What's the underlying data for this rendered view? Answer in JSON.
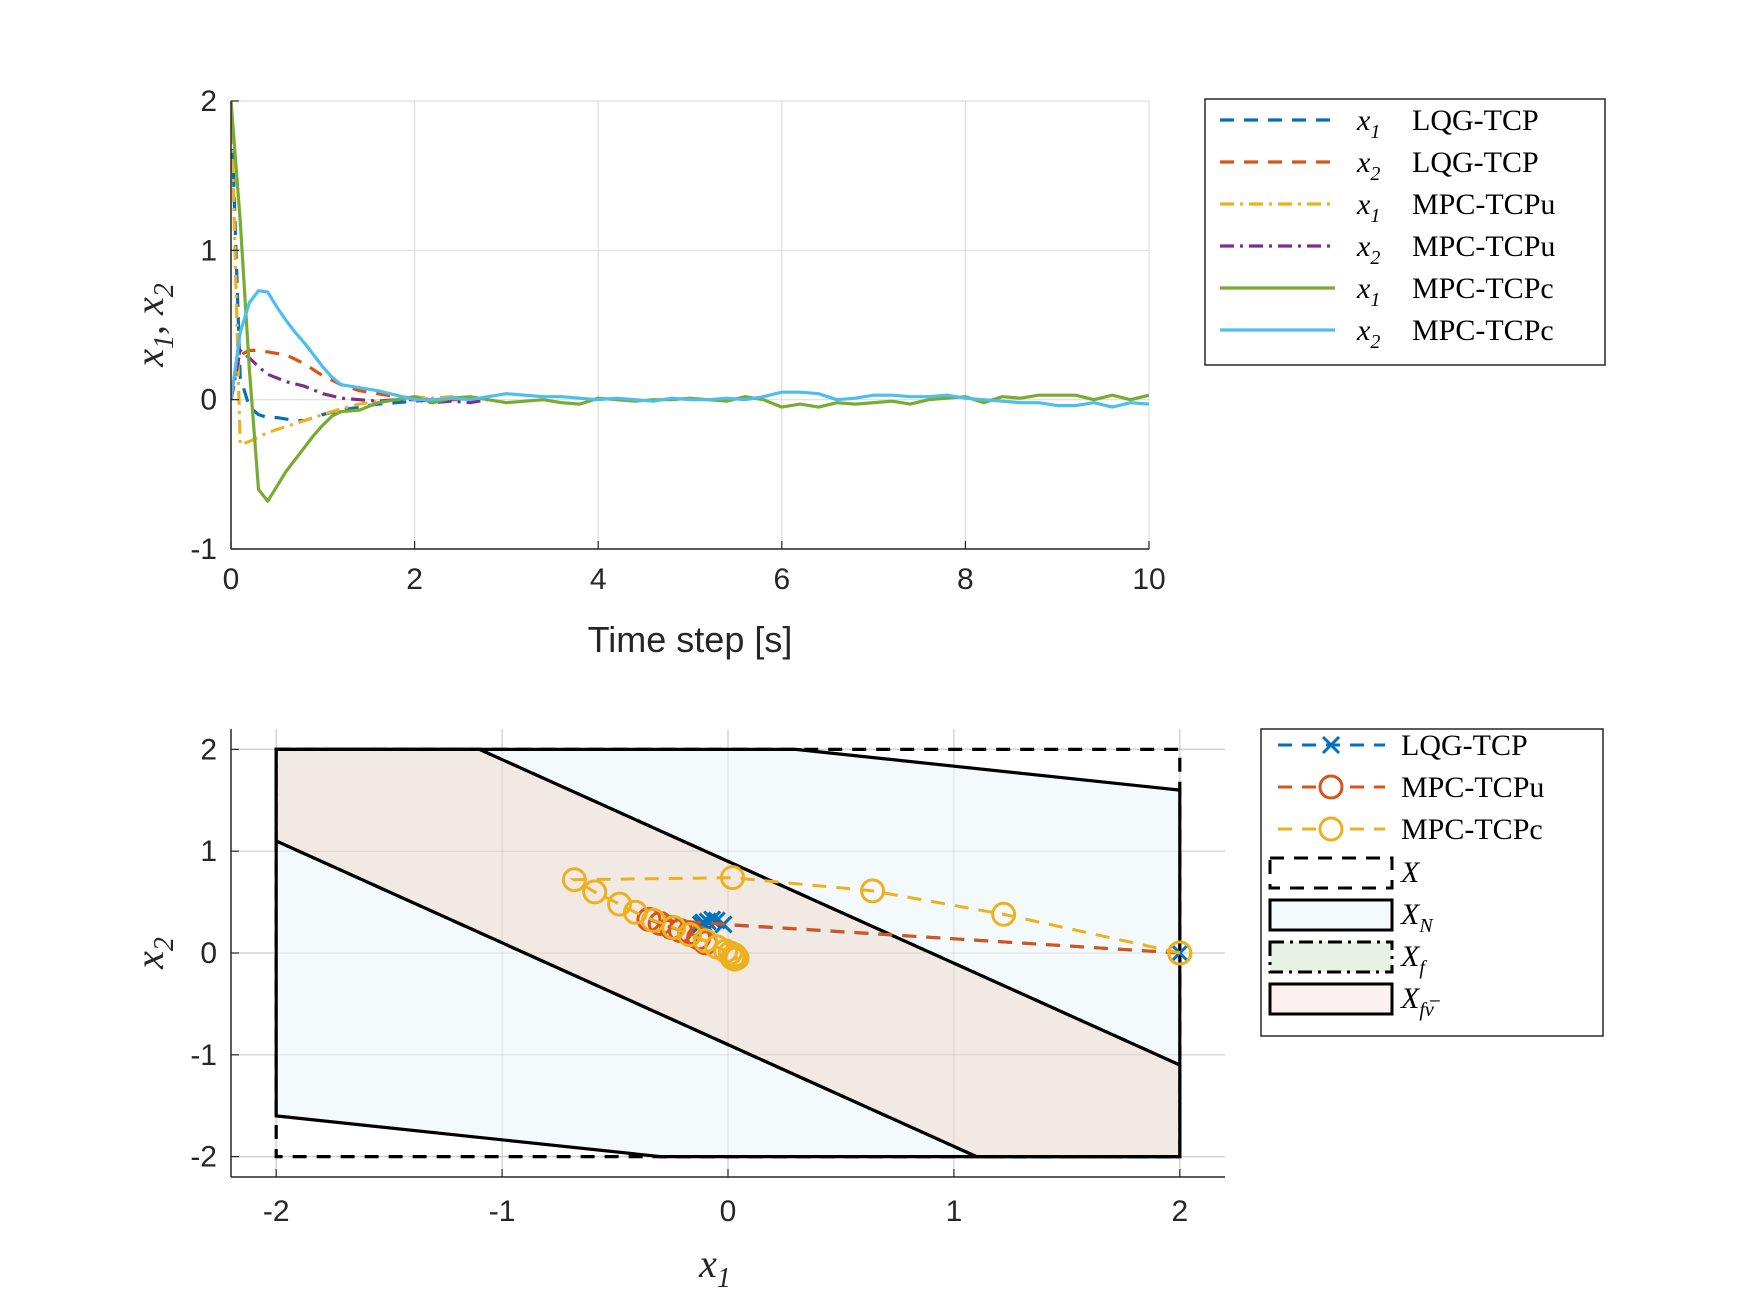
{
  "chart_data": [
    {
      "type": "line",
      "xlabel": "Time step [s]",
      "ylabel": "x1, x2",
      "xlim": [
        0,
        10
      ],
      "ylim": [
        -1,
        2
      ],
      "xticks": [
        "0",
        "2",
        "4",
        "6",
        "8",
        "10"
      ],
      "yticks": [
        "-1",
        "0",
        "1",
        "2"
      ],
      "grid": true,
      "legend_position": "outside-right",
      "series": [
        {
          "name": "x1 LQG-TCP",
          "sym": "x",
          "sub": "1",
          "method": "LQG-TCP",
          "color": "#0072BD",
          "dash": "dashed",
          "x": [
            0,
            0.1,
            0.2,
            0.3,
            0.4,
            0.5,
            0.6,
            0.7,
            0.8,
            0.9,
            1.0,
            1.2,
            1.4,
            1.6,
            1.8,
            2.0,
            2.2,
            2.4,
            2.5
          ],
          "y": [
            2.0,
            0.15,
            -0.05,
            -0.1,
            -0.12,
            -0.12,
            -0.13,
            -0.14,
            -0.14,
            -0.12,
            -0.1,
            -0.07,
            -0.05,
            -0.03,
            -0.02,
            -0.01,
            0.0,
            0.0,
            0.0
          ]
        },
        {
          "name": "x2 LQG-TCP",
          "sym": "x",
          "sub": "2",
          "method": "LQG-TCP",
          "color": "#D95319",
          "dash": "dashed",
          "x": [
            0,
            0.1,
            0.2,
            0.3,
            0.4,
            0.5,
            0.6,
            0.7,
            0.8,
            0.9,
            1.0,
            1.2,
            1.4,
            1.6,
            1.8,
            2.0,
            2.2,
            2.4,
            2.5
          ],
          "y": [
            0.0,
            0.3,
            0.33,
            0.33,
            0.32,
            0.31,
            0.3,
            0.27,
            0.24,
            0.2,
            0.16,
            0.1,
            0.06,
            0.04,
            0.02,
            0.01,
            0.0,
            0.0,
            0.0
          ]
        },
        {
          "name": "x1 MPC-TCPu",
          "sym": "x",
          "sub": "1",
          "method": "MPC-TCPu",
          "color": "#EDB120",
          "dash": "dashdot",
          "x": [
            0,
            0.1,
            0.2,
            0.3,
            0.4,
            0.6,
            0.8,
            1.0,
            1.2,
            1.4,
            1.6,
            1.8,
            2.0,
            2.2,
            2.4,
            2.6,
            2.8
          ],
          "y": [
            2.0,
            -0.3,
            -0.28,
            -0.25,
            -0.22,
            -0.18,
            -0.14,
            -0.1,
            -0.06,
            -0.03,
            -0.01,
            0.0,
            0.02,
            0.01,
            0.02,
            0.0,
            0.01
          ]
        },
        {
          "name": "x2 MPC-TCPu",
          "sym": "x",
          "sub": "2",
          "method": "MPC-TCPu",
          "color": "#7E2F8E",
          "dash": "dashdot",
          "x": [
            0,
            0.1,
            0.2,
            0.3,
            0.4,
            0.6,
            0.8,
            1.0,
            1.2,
            1.4,
            1.6,
            1.8,
            2.0,
            2.2,
            2.4,
            2.6,
            2.8
          ],
          "y": [
            0.0,
            0.33,
            0.28,
            0.22,
            0.17,
            0.12,
            0.09,
            0.04,
            0.01,
            0.0,
            -0.01,
            0.0,
            0.0,
            -0.02,
            -0.01,
            -0.02,
            0.0
          ]
        },
        {
          "name": "x1 MPC-TCPc",
          "sym": "x",
          "sub": "1",
          "method": "MPC-TCPc",
          "color": "#77AC30",
          "dash": "solid",
          "x": [
            0,
            0.1,
            0.2,
            0.3,
            0.4,
            0.5,
            0.6,
            0.7,
            0.8,
            0.9,
            1.0,
            1.1,
            1.2,
            1.4,
            1.6,
            1.8,
            2.0,
            2.2,
            2.4,
            2.6,
            2.8,
            3.0,
            3.2,
            3.4,
            3.6,
            3.8,
            4.0,
            4.2,
            4.4,
            4.6,
            4.8,
            5.0,
            5.2,
            5.4,
            5.6,
            5.8,
            6.0,
            6.2,
            6.4,
            6.6,
            6.8,
            7.0,
            7.2,
            7.4,
            7.6,
            7.8,
            8.0,
            8.2,
            8.4,
            8.6,
            8.8,
            9.0,
            9.2,
            9.4,
            9.6,
            9.8,
            10.0
          ],
          "y": [
            2.0,
            1.2,
            0.2,
            -0.6,
            -0.68,
            -0.58,
            -0.48,
            -0.4,
            -0.32,
            -0.24,
            -0.17,
            -0.11,
            -0.08,
            -0.07,
            -0.02,
            0.0,
            0.02,
            -0.02,
            0.01,
            0.02,
            0.0,
            -0.02,
            -0.01,
            0.0,
            -0.02,
            -0.03,
            0.01,
            0.0,
            -0.01,
            0.0,
            0.0,
            0.01,
            0.0,
            -0.01,
            0.02,
            0.0,
            -0.05,
            -0.03,
            -0.05,
            -0.02,
            -0.03,
            -0.02,
            -0.01,
            -0.03,
            0.0,
            0.01,
            0.02,
            -0.02,
            0.02,
            0.01,
            0.03,
            0.03,
            0.03,
            0.0,
            0.03,
            0.0,
            0.03
          ]
        },
        {
          "name": "x2 MPC-TCPc",
          "sym": "x",
          "sub": "2",
          "method": "MPC-TCPc",
          "color": "#4DBEEE",
          "dash": "solid",
          "x": [
            0,
            0.1,
            0.2,
            0.3,
            0.4,
            0.5,
            0.6,
            0.7,
            0.8,
            0.9,
            1.0,
            1.1,
            1.2,
            1.4,
            1.6,
            1.8,
            2.0,
            2.2,
            2.4,
            2.6,
            2.8,
            3.0,
            3.2,
            3.4,
            3.6,
            3.8,
            4.0,
            4.2,
            4.4,
            4.6,
            4.8,
            5.0,
            5.2,
            5.4,
            5.6,
            5.8,
            6.0,
            6.2,
            6.4,
            6.6,
            6.8,
            7.0,
            7.2,
            7.4,
            7.6,
            7.8,
            8.0,
            8.2,
            8.4,
            8.6,
            8.8,
            9.0,
            9.2,
            9.4,
            9.6,
            9.8,
            10.0
          ],
          "y": [
            0.0,
            0.45,
            0.65,
            0.73,
            0.72,
            0.62,
            0.53,
            0.45,
            0.38,
            0.3,
            0.22,
            0.15,
            0.1,
            0.08,
            0.06,
            0.03,
            0.0,
            0.0,
            0.01,
            0.0,
            0.02,
            0.04,
            0.03,
            0.02,
            0.02,
            0.01,
            0.0,
            0.01,
            0.0,
            -0.01,
            0.01,
            0.0,
            0.0,
            0.01,
            0.0,
            0.02,
            0.05,
            0.05,
            0.04,
            0.0,
            0.01,
            0.03,
            0.03,
            0.02,
            0.02,
            0.03,
            0.01,
            0.0,
            -0.01,
            -0.02,
            -0.02,
            -0.04,
            -0.04,
            -0.02,
            -0.05,
            -0.02,
            -0.03
          ]
        }
      ]
    },
    {
      "type": "scatter",
      "xlabel": "x1",
      "ylabel": "x2",
      "xlim": [
        -2.2,
        2.2
      ],
      "ylim": [
        -2.2,
        2.2
      ],
      "xticks": [
        "-2",
        "-1",
        "0",
        "1",
        "2"
      ],
      "yticks": [
        "-2",
        "-1",
        "0",
        "1",
        "2"
      ],
      "grid": true,
      "legend_position": "outside-right",
      "regions": [
        {
          "name": "X",
          "label_base": "X",
          "label_sub": "",
          "fill": "none",
          "stroke": "#000000",
          "dash": "dashed",
          "points": [
            [
              -2,
              2
            ],
            [
              2,
              2
            ],
            [
              2,
              -2
            ],
            [
              -2,
              -2
            ]
          ]
        },
        {
          "name": "X_N",
          "label_base": "X",
          "label_sub": "N",
          "fill": "#F4F9FB",
          "stroke": "#000000",
          "dash": "solid",
          "points": [
            [
              -2,
              2
            ],
            [
              0.3,
              2
            ],
            [
              2,
              1.6
            ],
            [
              2,
              -2
            ],
            [
              -0.3,
              -2
            ],
            [
              -2,
              -1.6
            ]
          ]
        },
        {
          "name": "X_f",
          "label_base": "X",
          "label_sub": "f",
          "fill": "#E9F1E5",
          "stroke": "#000000",
          "dash": "dashdot",
          "points": [
            [
              -2,
              2
            ],
            [
              -1.1,
              2
            ],
            [
              2,
              -1.1
            ],
            [
              2,
              -2
            ],
            [
              1.1,
              -2
            ],
            [
              -2,
              1.1
            ]
          ]
        },
        {
          "name": "X_fv",
          "label_base": "X",
          "label_sub": "fν̅",
          "fill": "#F9E1E1",
          "stroke": "#000000",
          "dash": "solid",
          "points": [
            [
              -2,
              2
            ],
            [
              -1.1,
              2
            ],
            [
              2,
              -1.1
            ],
            [
              2,
              -2
            ],
            [
              1.1,
              -2
            ],
            [
              -2,
              1.1
            ]
          ]
        }
      ],
      "series": [
        {
          "name": "LQG-TCP",
          "color": "#0072BD",
          "marker": "x",
          "x": [
            2.0,
            -0.02,
            -0.05,
            -0.07,
            -0.09,
            -0.11,
            -0.12
          ],
          "y": [
            0.0,
            0.28,
            0.32,
            0.33,
            0.31,
            0.3,
            0.28
          ]
        },
        {
          "name": "MPC-TCPu",
          "color": "#D95319",
          "marker": "o",
          "x": [
            2.0,
            -0.35,
            -0.3,
            -0.25,
            -0.21,
            -0.17,
            -0.13,
            -0.1
          ],
          "y": [
            0.0,
            0.33,
            0.29,
            0.25,
            0.22,
            0.2,
            0.15,
            0.1
          ]
        },
        {
          "name": "MPC-TCPc",
          "color": "#EDB120",
          "marker": "o",
          "x": [
            2.0,
            1.22,
            0.64,
            0.02,
            -0.68,
            -0.59,
            -0.48,
            -0.41,
            -0.33,
            -0.24,
            -0.17,
            -0.1,
            -0.05,
            -0.01,
            0.01,
            0.03,
            0.04,
            0.03,
            0.02
          ],
          "y": [
            0.0,
            0.38,
            0.61,
            0.74,
            0.72,
            0.6,
            0.48,
            0.4,
            0.32,
            0.25,
            0.18,
            0.12,
            0.06,
            0.02,
            0.0,
            -0.02,
            -0.05,
            -0.06,
            -0.05
          ]
        }
      ]
    }
  ]
}
